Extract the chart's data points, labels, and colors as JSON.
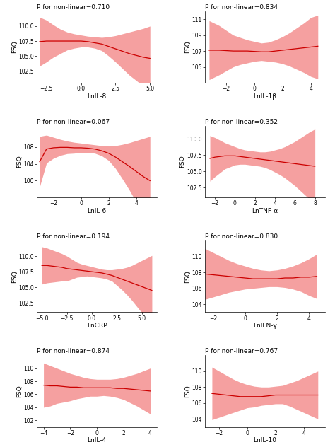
{
  "panels": [
    {
      "title": "P for non-linear=0.710",
      "xlabel": "LnIL-8",
      "ylabel": "FSQ",
      "xlim": [
        -3.2,
        5.5
      ],
      "ylim": [
        100.5,
        112.5
      ],
      "yticks": [
        102.5,
        105.0,
        107.5,
        110.0
      ],
      "xticks": [
        -2.5,
        0.0,
        2.5,
        5.0
      ],
      "line_x": [
        -3.0,
        -2.5,
        -2.0,
        -1.5,
        -1.0,
        -0.5,
        0.0,
        0.5,
        1.0,
        1.5,
        2.0,
        2.5,
        3.0,
        3.5,
        4.0,
        4.5,
        5.0
      ],
      "line_y": [
        107.4,
        107.5,
        107.5,
        107.5,
        107.5,
        107.5,
        107.5,
        107.4,
        107.2,
        107.0,
        106.6,
        106.2,
        105.8,
        105.4,
        105.1,
        104.8,
        104.6
      ],
      "upper_y": [
        111.5,
        111.0,
        110.2,
        109.5,
        109.0,
        108.7,
        108.5,
        108.3,
        108.2,
        108.1,
        108.2,
        108.4,
        108.7,
        109.0,
        109.3,
        109.6,
        110.0
      ],
      "lower_y": [
        103.3,
        104.0,
        104.8,
        105.4,
        106.0,
        106.3,
        106.5,
        106.5,
        106.3,
        105.9,
        105.0,
        104.0,
        102.9,
        101.8,
        100.9,
        100.0,
        99.2
      ]
    },
    {
      "title": "P for non-linear=0.834",
      "xlabel": "LnIL-1β",
      "ylabel": "FSQ",
      "xlim": [
        -3.5,
        5.0
      ],
      "ylim": [
        103.0,
        112.0
      ],
      "yticks": [
        105,
        107,
        109,
        111
      ],
      "xticks": [
        -2,
        0,
        2,
        4
      ],
      "line_x": [
        -3.2,
        -2.5,
        -2.0,
        -1.5,
        -1.0,
        -0.5,
        0.0,
        0.5,
        1.0,
        1.5,
        2.0,
        2.5,
        3.0,
        3.5,
        4.0,
        4.5
      ],
      "line_y": [
        107.1,
        107.1,
        107.05,
        107.0,
        107.0,
        107.0,
        106.95,
        106.9,
        106.9,
        107.0,
        107.1,
        107.2,
        107.3,
        107.4,
        107.5,
        107.6
      ],
      "upper_y": [
        110.8,
        110.2,
        109.6,
        109.0,
        108.7,
        108.4,
        108.2,
        108.0,
        108.1,
        108.4,
        108.8,
        109.3,
        109.9,
        110.5,
        111.2,
        111.5
      ],
      "lower_y": [
        103.4,
        104.0,
        104.5,
        105.0,
        105.3,
        105.5,
        105.7,
        105.8,
        105.7,
        105.6,
        105.4,
        105.1,
        104.7,
        104.3,
        103.8,
        103.5
      ]
    },
    {
      "title": "P for non-linear=0.067",
      "xlabel": "LnIL-6",
      "ylabel": "FSQ",
      "xlim": [
        -3.2,
        5.5
      ],
      "ylim": [
        96.0,
        113.0
      ],
      "yticks": [
        100,
        104,
        108
      ],
      "xticks": [
        -2,
        0,
        2,
        4
      ],
      "line_x": [
        -3.0,
        -2.5,
        -2.0,
        -1.5,
        -1.0,
        -0.5,
        0.0,
        0.5,
        1.0,
        1.5,
        2.0,
        2.5,
        3.0,
        3.5,
        4.0,
        4.5,
        5.0
      ],
      "line_y": [
        104.5,
        107.5,
        107.8,
        107.9,
        107.9,
        107.8,
        107.8,
        107.7,
        107.5,
        107.1,
        106.5,
        105.6,
        104.5,
        103.4,
        102.2,
        101.0,
        100.0
      ],
      "upper_y": [
        110.5,
        110.8,
        110.3,
        109.8,
        109.4,
        109.1,
        108.9,
        108.7,
        108.5,
        108.3,
        108.2,
        108.3,
        108.6,
        109.0,
        109.5,
        110.0,
        110.5
      ],
      "lower_y": [
        98.5,
        104.2,
        105.3,
        106.0,
        106.4,
        106.5,
        106.7,
        106.7,
        106.5,
        105.9,
        104.8,
        102.9,
        100.4,
        97.8,
        94.9,
        92.0,
        89.5
      ]
    },
    {
      "title": "P for non-linear=0.352",
      "xlabel": "LnTNF-α",
      "ylabel": "FSQ",
      "xlim": [
        -3.0,
        9.0
      ],
      "ylim": [
        101.0,
        112.0
      ],
      "yticks": [
        102.5,
        105.0,
        107.5,
        110.0
      ],
      "xticks": [
        -2,
        0,
        2,
        4,
        6,
        8
      ],
      "line_x": [
        -2.5,
        -2.0,
        -1.5,
        -1.0,
        -0.5,
        0.0,
        0.5,
        1.0,
        1.5,
        2.0,
        2.5,
        3.0,
        3.5,
        4.0,
        4.5,
        5.0,
        5.5,
        6.0,
        6.5,
        7.0,
        7.5,
        8.0
      ],
      "line_y": [
        107.0,
        107.2,
        107.3,
        107.4,
        107.4,
        107.4,
        107.3,
        107.2,
        107.1,
        107.0,
        106.9,
        106.8,
        106.7,
        106.6,
        106.5,
        106.4,
        106.3,
        106.2,
        106.1,
        106.0,
        105.9,
        105.8
      ],
      "upper_y": [
        110.5,
        110.2,
        109.8,
        109.4,
        109.1,
        108.8,
        108.5,
        108.3,
        108.2,
        108.1,
        108.0,
        108.0,
        108.1,
        108.3,
        108.5,
        108.8,
        109.2,
        109.6,
        110.1,
        110.6,
        111.1,
        111.5
      ],
      "lower_y": [
        103.5,
        104.2,
        104.8,
        105.4,
        105.7,
        106.0,
        106.1,
        106.1,
        106.0,
        105.9,
        105.8,
        105.6,
        105.3,
        104.9,
        104.5,
        104.0,
        103.4,
        102.8,
        102.1,
        101.4,
        100.7,
        100.1
      ]
    },
    {
      "title": "P for non-linear=0.194",
      "xlabel": "LnCRP",
      "ylabel": "FSQ",
      "xlim": [
        -5.5,
        6.5
      ],
      "ylim": [
        101.0,
        112.5
      ],
      "yticks": [
        102.5,
        105.0,
        107.5,
        110.0
      ],
      "xticks": [
        -5.0,
        -2.5,
        0.0,
        2.5,
        5.0
      ],
      "line_x": [
        -5.0,
        -4.5,
        -4.0,
        -3.5,
        -3.0,
        -2.5,
        -2.0,
        -1.5,
        -1.0,
        -0.5,
        0.0,
        0.5,
        1.0,
        1.5,
        2.0,
        2.5,
        3.0,
        3.5,
        4.0,
        4.5,
        5.0,
        5.5,
        6.0
      ],
      "line_y": [
        108.5,
        108.5,
        108.4,
        108.3,
        108.2,
        108.0,
        107.9,
        107.8,
        107.7,
        107.6,
        107.5,
        107.4,
        107.3,
        107.1,
        106.9,
        106.6,
        106.3,
        106.0,
        105.7,
        105.4,
        105.1,
        104.8,
        104.5
      ],
      "upper_y": [
        111.5,
        111.3,
        111.0,
        110.7,
        110.4,
        110.0,
        109.5,
        109.0,
        108.7,
        108.5,
        108.3,
        108.1,
        107.9,
        107.8,
        107.8,
        107.9,
        108.0,
        108.2,
        108.5,
        108.9,
        109.3,
        109.7,
        110.1
      ],
      "lower_y": [
        105.5,
        105.7,
        105.8,
        105.9,
        106.0,
        106.0,
        106.3,
        106.6,
        106.7,
        106.8,
        106.7,
        106.6,
        106.5,
        106.3,
        106.0,
        105.3,
        104.6,
        103.8,
        102.9,
        101.9,
        100.9,
        99.9,
        98.9
      ]
    },
    {
      "title": "P for non-linear=0.830",
      "xlabel": "LnIFN-γ",
      "ylabel": "FSQ",
      "xlim": [
        -2.5,
        5.0
      ],
      "ylim": [
        103.0,
        112.0
      ],
      "yticks": [
        104,
        106,
        108,
        110
      ],
      "xticks": [
        -2,
        0,
        2,
        4
      ],
      "line_x": [
        -2.5,
        -2.0,
        -1.5,
        -1.0,
        -0.5,
        0.0,
        0.5,
        1.0,
        1.5,
        2.0,
        2.5,
        3.0,
        3.5,
        4.0,
        4.5
      ],
      "line_y": [
        107.8,
        107.7,
        107.6,
        107.5,
        107.4,
        107.3,
        107.2,
        107.2,
        107.2,
        107.2,
        107.3,
        107.3,
        107.4,
        107.4,
        107.5
      ],
      "upper_y": [
        111.0,
        110.5,
        110.0,
        109.5,
        109.1,
        108.8,
        108.5,
        108.3,
        108.2,
        108.3,
        108.5,
        108.8,
        109.2,
        109.7,
        110.3
      ],
      "lower_y": [
        104.6,
        104.9,
        105.2,
        105.5,
        105.7,
        105.9,
        106.0,
        106.1,
        106.2,
        106.2,
        106.1,
        105.9,
        105.6,
        105.1,
        104.7
      ]
    },
    {
      "title": "P for non-linear=0.874",
      "xlabel": "LnIL-4",
      "ylabel": "FSQ",
      "xlim": [
        -4.5,
        4.5
      ],
      "ylim": [
        101.0,
        112.0
      ],
      "yticks": [
        102,
        104,
        106,
        108,
        110
      ],
      "xticks": [
        -4,
        -2,
        0,
        2,
        4
      ],
      "line_x": [
        -4.0,
        -3.5,
        -3.0,
        -2.5,
        -2.0,
        -1.5,
        -1.0,
        -0.5,
        0.0,
        0.5,
        1.0,
        1.5,
        2.0,
        2.5,
        3.0,
        3.5,
        4.0
      ],
      "line_y": [
        107.4,
        107.3,
        107.3,
        107.2,
        107.1,
        107.1,
        107.0,
        107.0,
        107.0,
        107.0,
        107.0,
        106.9,
        106.9,
        106.8,
        106.7,
        106.6,
        106.5
      ],
      "upper_y": [
        110.8,
        110.4,
        110.0,
        109.6,
        109.2,
        108.9,
        108.6,
        108.4,
        108.3,
        108.3,
        108.3,
        108.4,
        108.6,
        108.9,
        109.2,
        109.6,
        110.0
      ],
      "lower_y": [
        104.0,
        104.2,
        104.6,
        104.8,
        105.0,
        105.3,
        105.5,
        105.7,
        105.7,
        105.8,
        105.7,
        105.5,
        105.2,
        104.7,
        104.2,
        103.6,
        103.0
      ]
    },
    {
      "title": "P for non-linear=0.767",
      "xlabel": "LnIL-10",
      "ylabel": "FSQ",
      "xlim": [
        -3.0,
        5.5
      ],
      "ylim": [
        103.0,
        112.0
      ],
      "yticks": [
        104,
        106,
        108,
        110
      ],
      "xticks": [
        -2,
        0,
        2,
        4
      ],
      "line_x": [
        -2.5,
        -2.0,
        -1.5,
        -1.0,
        -0.5,
        0.0,
        0.5,
        1.0,
        1.5,
        2.0,
        2.5,
        3.0,
        3.5,
        4.0,
        4.5,
        5.0
      ],
      "line_y": [
        107.2,
        107.1,
        107.0,
        106.9,
        106.8,
        106.8,
        106.8,
        106.8,
        106.9,
        107.0,
        107.0,
        107.0,
        107.0,
        107.0,
        107.0,
        107.0
      ],
      "upper_y": [
        110.5,
        110.0,
        109.5,
        109.0,
        108.6,
        108.3,
        108.1,
        108.0,
        108.0,
        108.1,
        108.2,
        108.5,
        108.8,
        109.2,
        109.6,
        110.0
      ],
      "lower_y": [
        103.9,
        104.2,
        104.5,
        104.8,
        105.1,
        105.4,
        105.5,
        105.7,
        105.8,
        105.9,
        105.9,
        105.6,
        105.2,
        104.8,
        104.4,
        104.0
      ]
    }
  ],
  "line_color": "#cc0000",
  "fill_color": "#f5a0a0",
  "background_color": "#ffffff",
  "title_fontsize": 6.5,
  "label_fontsize": 6.5,
  "tick_fontsize": 5.5
}
